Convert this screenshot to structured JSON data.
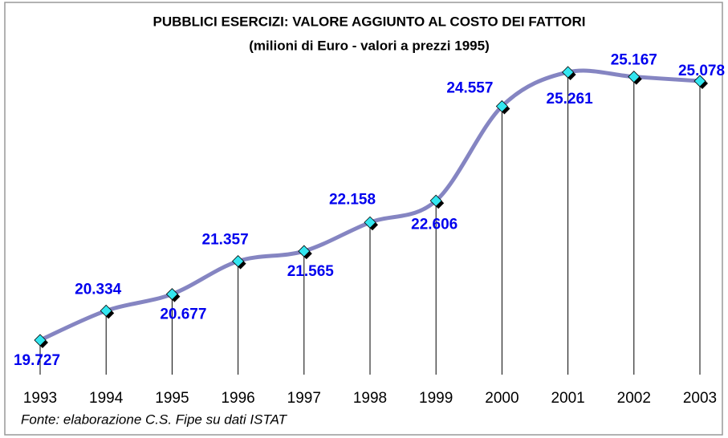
{
  "chart_data": {
    "type": "line",
    "title": "PUBBLICI ESERCIZI: VALORE AGGIUNTO AL COSTO DEI FATTORI",
    "subtitle": "(milioni di Euro - valori a prezzi 1995)",
    "categories": [
      "1993",
      "1994",
      "1995",
      "1996",
      "1997",
      "1998",
      "1999",
      "2000",
      "2001",
      "2002",
      "2003"
    ],
    "values": [
      19727,
      20334,
      20677,
      21357,
      21565,
      22158,
      22606,
      24557,
      25261,
      25167,
      25078
    ],
    "value_labels": [
      "19.727",
      "20.334",
      "20.677",
      "21.357",
      "21.565",
      "22.158",
      "22.606",
      "24.557",
      "25.261",
      "25.167",
      "25.078"
    ],
    "color": "#8585c2",
    "marker_color": "#33e6f0",
    "label_color": "#0000ee",
    "note": "Fonte: elaborazione C.S. Fipe su dati ISTAT"
  }
}
